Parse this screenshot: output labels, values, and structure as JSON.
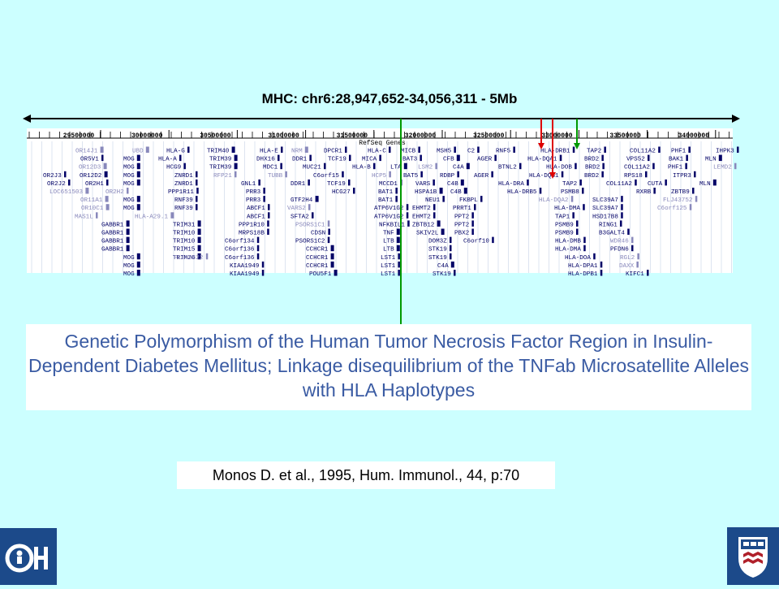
{
  "slide": {
    "title": "MHC: chr6:28,947,652-34,056,311 - 5Mb",
    "track_title": "RefSeq Genes",
    "ruler_ticks": [
      "29500000",
      "30000000",
      "30500000",
      "31000000",
      "31500000",
      "32000000",
      "32500000",
      "33000000",
      "33500000",
      "34000000"
    ],
    "paper_title": "Genetic Polymorphism of the Human Tumor Necrosis Factor Region in Insulin-Dependent Diabetes Mellitus; Linkage disequilibrium of the TNFab Microsatellite Alleles with HLA Haplotypes",
    "citation": "Monos D. et al., 1995, Hum. Immunol., 44, p:70",
    "colors": {
      "background": "#ccffff",
      "gene_dark": "#000066",
      "gene_light": "#8888bb",
      "marker_green": "#009900",
      "marker_red": "#dd0000",
      "title_blue": "#3a5ba3",
      "logo_blue": "#1c4a8a"
    }
  },
  "gene_rows": [
    [
      [
        "OR14J1",
        60,
        1
      ],
      [
        "UBD",
        130,
        1
      ],
      [
        "HLA-G",
        172,
        0
      ],
      [
        "TRIM40",
        222,
        0
      ],
      [
        "HLA-E",
        287,
        0
      ],
      [
        "NRM",
        326,
        1
      ],
      [
        "DPCR1",
        366,
        0
      ],
      [
        "HLA-C",
        420,
        0
      ],
      [
        "MICB",
        461,
        0
      ],
      [
        "MSH5",
        505,
        0
      ],
      [
        "C2",
        543,
        0
      ],
      [
        "RNF5",
        578,
        0
      ],
      [
        "HLA-DRB1",
        633,
        0
      ],
      [
        "TAP2",
        690,
        0
      ],
      [
        "COL11A2",
        743,
        0
      ],
      [
        "PHF1",
        794,
        0
      ],
      [
        "IHPK3",
        849,
        0
      ]
    ],
    [
      [
        "OR5V1",
        66,
        0
      ],
      [
        "MOG",
        119,
        0
      ],
      [
        "HLA-A",
        162,
        0
      ],
      [
        "TRIM39",
        225,
        0
      ],
      [
        "DHX16",
        283,
        0
      ],
      [
        "DDR1",
        327,
        0
      ],
      [
        "TCF19",
        371,
        0
      ],
      [
        "MICA",
        413,
        0
      ],
      [
        "BAT3",
        463,
        0
      ],
      [
        "CFB",
        513,
        0
      ],
      [
        "AGER",
        555,
        0
      ],
      [
        "HLA-DQA1",
        617,
        0
      ],
      [
        "BRD2",
        687,
        0
      ],
      [
        "VPS52",
        739,
        0
      ],
      [
        "BAK1",
        791,
        0
      ],
      [
        "MLN",
        836,
        0
      ]
    ],
    [
      [
        "OR12D3",
        64,
        1
      ],
      [
        "MOG",
        119,
        0
      ],
      [
        "HCG9",
        172,
        0
      ],
      [
        "TRIM39",
        225,
        0
      ],
      [
        "MDC1",
        291,
        0
      ],
      [
        "MUC21",
        340,
        0
      ],
      [
        "HLA-B",
        401,
        0
      ],
      [
        "LTA",
        448,
        0
      ],
      [
        "LSM2",
        482,
        1
      ],
      [
        "C4A",
        525,
        0
      ],
      [
        "BTNL2",
        581,
        0
      ],
      [
        "HLA-DOB",
        640,
        0
      ],
      [
        "BRD2",
        688,
        0
      ],
      [
        "COL11A2",
        736,
        0
      ],
      [
        "PHF1",
        790,
        0
      ],
      [
        "LEMD2",
        846,
        1
      ]
    ],
    [
      [
        "OR2J3",
        20,
        0
      ],
      [
        "OR12D2",
        65,
        0
      ],
      [
        "MOG",
        119,
        0
      ],
      [
        "ZNRD1",
        182,
        0
      ],
      [
        "RFP21",
        230,
        1
      ],
      [
        "TUBB",
        297,
        1
      ],
      [
        "C6orf15",
        353,
        0
      ],
      [
        "HCP5",
        425,
        1
      ],
      [
        "BAT5",
        464,
        0
      ],
      [
        "RDBP",
        509,
        0
      ],
      [
        "AGER",
        551,
        0
      ],
      [
        "HLA-DQB1",
        619,
        0
      ],
      [
        "BRD2",
        687,
        0
      ],
      [
        "RPS18",
        736,
        0
      ],
      [
        "ITPR3",
        796,
        0
      ]
    ],
    [
      [
        "OR2J2",
        25,
        0
      ],
      [
        "OR2H1",
        72,
        0
      ],
      [
        "MOG",
        119,
        0
      ],
      [
        "ZNRD1",
        182,
        0
      ],
      [
        "GNL1",
        264,
        0
      ],
      [
        "DDR1",
        325,
        0
      ],
      [
        "TCF19",
        370,
        0
      ],
      [
        "MCCD1",
        434,
        0
      ],
      [
        "VARS",
        479,
        0
      ],
      [
        "C4B",
        518,
        0
      ],
      [
        "HLA-DRA",
        581,
        0
      ],
      [
        "TAP2",
        660,
        0
      ],
      [
        "COL11A2",
        714,
        0
      ],
      [
        "CUTA",
        765,
        0
      ],
      [
        "MLN",
        829,
        0
      ]
    ],
    [
      [
        "LOC651503",
        28,
        1
      ],
      [
        "OR2H2",
        97,
        1
      ],
      [
        "PPP1R11",
        174,
        0
      ],
      [
        "PRR3",
        270,
        0
      ],
      [
        "HCG27",
        376,
        0
      ],
      [
        "BAT1",
        433,
        0
      ],
      [
        "HSPA1B",
        478,
        0
      ],
      [
        "C4B",
        522,
        0
      ],
      [
        "HLA-DRB5",
        592,
        0
      ],
      [
        "PSMB8",
        658,
        0
      ],
      [
        "RXRB",
        751,
        0
      ],
      [
        "ZBTB9",
        794,
        0
      ]
    ],
    [
      [
        "OR11A1",
        66,
        1
      ],
      [
        "MOG",
        119,
        0
      ],
      [
        "RNF39",
        182,
        0
      ],
      [
        "PRR3",
        270,
        0
      ],
      [
        "GTF2H4",
        325,
        0
      ],
      [
        "BAT1",
        433,
        0
      ],
      [
        "NEU1",
        491,
        0
      ],
      [
        "FKBPL",
        533,
        0
      ],
      [
        "HLA-DQA2",
        631,
        1
      ],
      [
        "SLC39A7",
        697,
        0
      ],
      [
        "FLJ43752",
        784,
        1
      ]
    ],
    [
      [
        "OR10C1",
        67,
        1
      ],
      [
        "MOG",
        119,
        0
      ],
      [
        "RNF39",
        182,
        0
      ],
      [
        "ABCF1",
        271,
        0
      ],
      [
        "VARS2",
        321,
        1
      ],
      [
        "ATP6V1G2",
        428,
        0
      ],
      [
        "EHMT2",
        475,
        0
      ],
      [
        "PRRT1",
        525,
        0
      ],
      [
        "HLA-DMA",
        650,
        0
      ],
      [
        "SLC39A7",
        697,
        0
      ],
      [
        "C6orf125",
        777,
        1
      ]
    ],
    [
      [
        "MAS1L",
        59,
        1
      ],
      [
        "HLA-A29.1",
        133,
        1
      ],
      [
        "ABCF1",
        271,
        0
      ],
      [
        "SFTA2",
        325,
        0
      ],
      [
        "ATP6V1G2",
        428,
        0
      ],
      [
        "EHMT2",
        475,
        0
      ],
      [
        "PPT2",
        527,
        0
      ],
      [
        "TAP1",
        651,
        0
      ],
      [
        "HSD17B8",
        697,
        0
      ]
    ],
    [
      [
        "GABBR1",
        92,
        0
      ],
      [
        "TRIM31",
        180,
        0
      ],
      [
        "PPP1R10",
        261,
        0
      ],
      [
        "PSORS1C1",
        331,
        1
      ],
      [
        "NFKBIL1",
        434,
        0
      ],
      [
        "ZBTB12",
        475,
        0
      ],
      [
        "PPT2",
        527,
        0
      ],
      [
        "PSMB9",
        651,
        0
      ],
      [
        "RING1",
        705,
        0
      ]
    ],
    [
      [
        "GABBR1",
        92,
        0
      ],
      [
        "TRIM10",
        180,
        0
      ],
      [
        "MRPS18B",
        261,
        0
      ],
      [
        "CDSN",
        350,
        0
      ],
      [
        "TNF",
        439,
        0
      ],
      [
        "SKIV2L",
        480,
        0
      ],
      [
        "PBX2",
        527,
        0
      ],
      [
        "PSMB9",
        651,
        0
      ],
      [
        "B3GALT4",
        705,
        0
      ]
    ],
    [
      [
        "GABBR1",
        92,
        0
      ],
      [
        "TRIM10",
        180,
        0
      ],
      [
        "C6orf134",
        244,
        0
      ],
      [
        "PSORS1C2",
        331,
        0
      ],
      [
        "LTB",
        439,
        0
      ],
      [
        "DOM3Z",
        495,
        0
      ],
      [
        "C6orf10",
        538,
        0
      ],
      [
        "HLA-DMB",
        651,
        0
      ],
      [
        "WDR46",
        719,
        1
      ]
    ],
    [
      [
        "GABBR1",
        92,
        0
      ],
      [
        "TRIM15",
        180,
        0
      ],
      [
        "C6orf136",
        244,
        0
      ],
      [
        "CCHCR1",
        344,
        0
      ],
      [
        "LTB",
        439,
        0
      ],
      [
        "STK19",
        495,
        0
      ],
      [
        "HLA-DMA",
        651,
        0
      ],
      [
        "PFDN6",
        719,
        0
      ]
    ],
    [
      [
        "MOG",
        119,
        0
      ],
      [
        "TRIM26",
        180,
        0
      ],
      [
        "FLJ45422",
        181,
        1
      ],
      [
        "C6orf136",
        244,
        0
      ],
      [
        "CCHCR1",
        344,
        0
      ],
      [
        "LST1",
        436,
        0
      ],
      [
        "STK19",
        495,
        0
      ],
      [
        "HLA-DOA",
        663,
        0
      ],
      [
        "RGL2",
        731,
        1
      ]
    ],
    [
      [
        "MOG",
        119,
        0
      ],
      [
        "KIAA1949",
        250,
        0
      ],
      [
        "CCHCR1",
        344,
        0
      ],
      [
        "LST1",
        436,
        0
      ],
      [
        "C4A",
        506,
        0
      ],
      [
        "HLA-DPA1",
        667,
        0
      ],
      [
        "DAXX",
        730,
        1
      ]
    ],
    [
      [
        "MOG",
        119,
        0
      ],
      [
        "KIAA1949",
        250,
        0
      ],
      [
        "POU5F1",
        348,
        0
      ],
      [
        "LST1",
        436,
        0
      ],
      [
        "STK19",
        500,
        0
      ],
      [
        "HLA-DPB1",
        667,
        0
      ],
      [
        "KIFC1",
        738,
        0
      ]
    ]
  ]
}
